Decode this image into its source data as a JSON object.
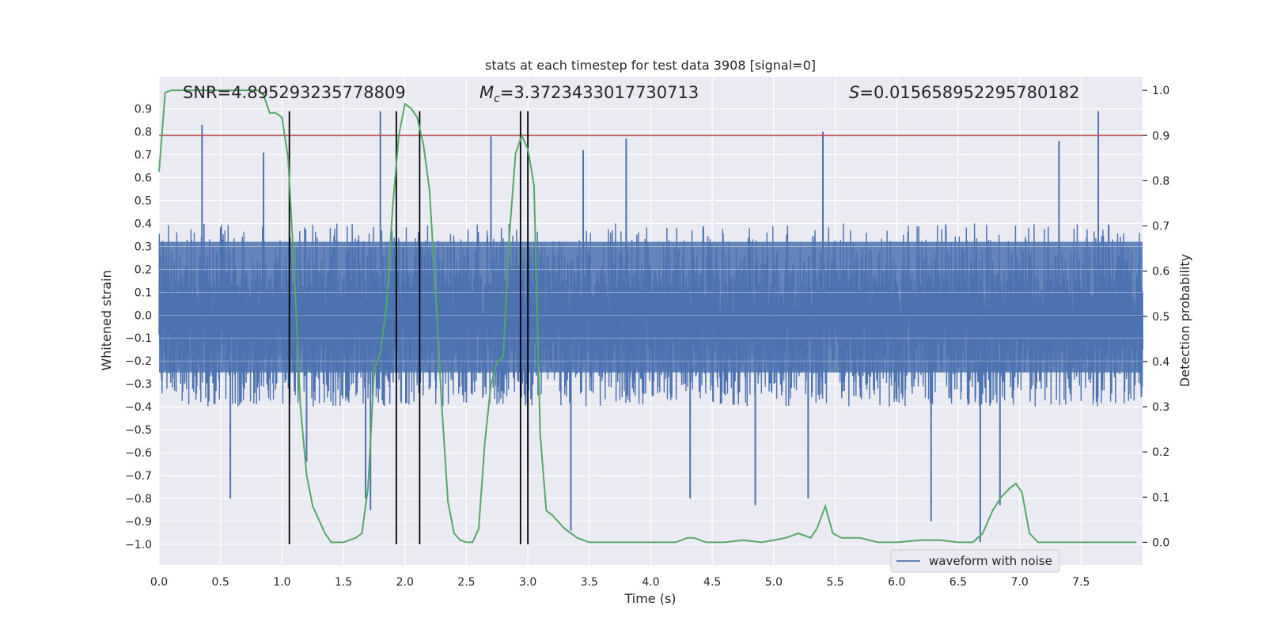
{
  "chart_data": {
    "type": "line",
    "title": "stats at each timestep for test data 3908 [signal=0]",
    "xlabel": "Time (s)",
    "ylabel_left": "Whitened strain",
    "ylabel_right": "Detection probability",
    "xlim": [
      0.0,
      8.0
    ],
    "ylim_left": [
      -1.09,
      1.04
    ],
    "ylim_right": [
      -0.05,
      1.03
    ],
    "x_ticks": [
      0.0,
      0.5,
      1.0,
      1.5,
      2.0,
      2.5,
      3.0,
      3.5,
      4.0,
      4.5,
      5.0,
      5.5,
      6.0,
      6.5,
      7.0,
      7.5
    ],
    "x_tick_labels": [
      "0.0",
      "0.5",
      "1.0",
      "1.5",
      "2.0",
      "2.5",
      "3.0",
      "3.5",
      "4.0",
      "4.5",
      "5.0",
      "5.5",
      "6.0",
      "6.5",
      "7.0",
      "7.5"
    ],
    "y_left_ticks": [
      0.9,
      0.8,
      0.7,
      0.6,
      0.5,
      0.4,
      0.3,
      0.2,
      0.1,
      0.0,
      -0.1,
      -0.2,
      -0.3,
      -0.4,
      -0.5,
      -0.6,
      -0.7,
      -0.8,
      -0.9,
      -1.0
    ],
    "y_left_tick_labels": [
      "0.9",
      "0.8",
      "0.7",
      "0.6",
      "0.5",
      "0.4",
      "0.3",
      "0.2",
      "0.1",
      "0.0",
      "−0.1",
      "−0.2",
      "−0.3",
      "−0.4",
      "−0.5",
      "−0.6",
      "−0.7",
      "−0.8",
      "−0.9",
      "−1.0"
    ],
    "y_right_ticks": [
      1.0,
      0.9,
      0.8,
      0.7,
      0.6,
      0.5,
      0.4,
      0.3,
      0.2,
      0.1,
      0.0
    ],
    "y_right_tick_labels": [
      "1.0",
      "0.9",
      "0.8",
      "0.7",
      "0.6",
      "0.5",
      "0.4",
      "0.3",
      "0.2",
      "0.1",
      "0.0"
    ],
    "annotations": {
      "snr": "SNR=4.895293235778809",
      "mc_symbol": "M",
      "mc_subscript": "c",
      "mc_value": "=3.3723433017730713",
      "s_symbol": "S",
      "s_value": "=0.015658952295780182"
    },
    "threshold": {
      "value": 0.9,
      "axis": "right",
      "color": "#c44e52"
    },
    "vertical_markers": {
      "x": [
        1.06,
        1.93,
        2.12,
        2.94,
        3.0
      ],
      "y_range_left": [
        -1.0,
        0.89
      ],
      "color": "#000000"
    },
    "series": [
      {
        "name": "waveform with noise",
        "axis": "left",
        "color": "#4c72b0",
        "kind": "dense_noise",
        "core_band": [
          -0.25,
          0.32
        ],
        "typical_peak": [
          -0.5,
          0.55
        ],
        "spikes": [
          {
            "x": 0.35,
            "y": 0.83
          },
          {
            "x": 0.58,
            "y": -0.8
          },
          {
            "x": 0.85,
            "y": 0.71
          },
          {
            "x": 1.2,
            "y": -0.64
          },
          {
            "x": 1.68,
            "y": -0.8
          },
          {
            "x": 1.8,
            "y": 0.89
          },
          {
            "x": 1.72,
            "y": -0.85
          },
          {
            "x": 2.7,
            "y": 0.78
          },
          {
            "x": 3.0,
            "y": -0.68
          },
          {
            "x": 3.35,
            "y": -0.94
          },
          {
            "x": 3.8,
            "y": 0.77
          },
          {
            "x": 4.32,
            "y": -0.8
          },
          {
            "x": 5.28,
            "y": -0.8
          },
          {
            "x": 5.4,
            "y": 0.8
          },
          {
            "x": 6.28,
            "y": -0.9
          },
          {
            "x": 6.68,
            "y": -0.99
          },
          {
            "x": 6.84,
            "y": -0.83
          },
          {
            "x": 7.32,
            "y": 0.76
          },
          {
            "x": 7.64,
            "y": 0.89
          },
          {
            "x": 4.85,
            "y": -0.83
          },
          {
            "x": 3.45,
            "y": 0.72
          }
        ]
      },
      {
        "name": "detection probability",
        "axis": "right",
        "color": "#55a868",
        "x": [
          0.0,
          0.05,
          0.1,
          0.15,
          0.2,
          0.3,
          0.4,
          0.5,
          0.6,
          0.7,
          0.8,
          0.85,
          0.9,
          0.95,
          1.0,
          1.05,
          1.1,
          1.15,
          1.2,
          1.25,
          1.3,
          1.35,
          1.4,
          1.45,
          1.5,
          1.55,
          1.6,
          1.65,
          1.7,
          1.75,
          1.8,
          1.85,
          1.9,
          1.95,
          2.0,
          2.05,
          2.1,
          2.15,
          2.2,
          2.25,
          2.3,
          2.35,
          2.4,
          2.45,
          2.5,
          2.55,
          2.6,
          2.65,
          2.7,
          2.75,
          2.8,
          2.85,
          2.9,
          2.95,
          3.0,
          3.05,
          3.1,
          3.15,
          3.2,
          3.3,
          3.4,
          3.5,
          3.6,
          3.8,
          4.0,
          4.2,
          4.3,
          4.35,
          4.45,
          4.6,
          4.75,
          4.9,
          5.0,
          5.1,
          5.2,
          5.3,
          5.35,
          5.42,
          5.48,
          5.55,
          5.7,
          5.85,
          6.0,
          6.2,
          6.35,
          6.5,
          6.62,
          6.7,
          6.78,
          6.85,
          6.92,
          6.97,
          7.02,
          7.08,
          7.15,
          7.3,
          7.5,
          7.7,
          7.95
        ],
        "y": [
          0.82,
          0.995,
          1.0,
          1.0,
          1.0,
          1.0,
          1.0,
          1.0,
          1.0,
          1.0,
          1.0,
          0.99,
          0.95,
          0.95,
          0.94,
          0.85,
          0.6,
          0.3,
          0.15,
          0.08,
          0.05,
          0.02,
          0.0,
          0.0,
          0.0,
          0.005,
          0.01,
          0.02,
          0.12,
          0.38,
          0.42,
          0.52,
          0.74,
          0.9,
          0.97,
          0.96,
          0.94,
          0.88,
          0.78,
          0.55,
          0.3,
          0.09,
          0.02,
          0.005,
          0.0,
          0.0,
          0.03,
          0.22,
          0.35,
          0.4,
          0.41,
          0.68,
          0.86,
          0.9,
          0.87,
          0.79,
          0.24,
          0.07,
          0.06,
          0.03,
          0.01,
          0.0,
          0.0,
          0.0,
          0.0,
          0.0,
          0.01,
          0.01,
          0.0,
          0.0,
          0.005,
          0.0,
          0.005,
          0.01,
          0.02,
          0.01,
          0.03,
          0.08,
          0.02,
          0.01,
          0.01,
          0.0,
          0.0,
          0.005,
          0.005,
          0.0,
          0.0,
          0.02,
          0.07,
          0.1,
          0.12,
          0.13,
          0.11,
          0.02,
          0.0,
          0.0,
          0.0,
          0.0,
          0.0
        ]
      }
    ],
    "legend": {
      "location": "lower-center",
      "entries": [
        "waveform with noise"
      ]
    }
  }
}
